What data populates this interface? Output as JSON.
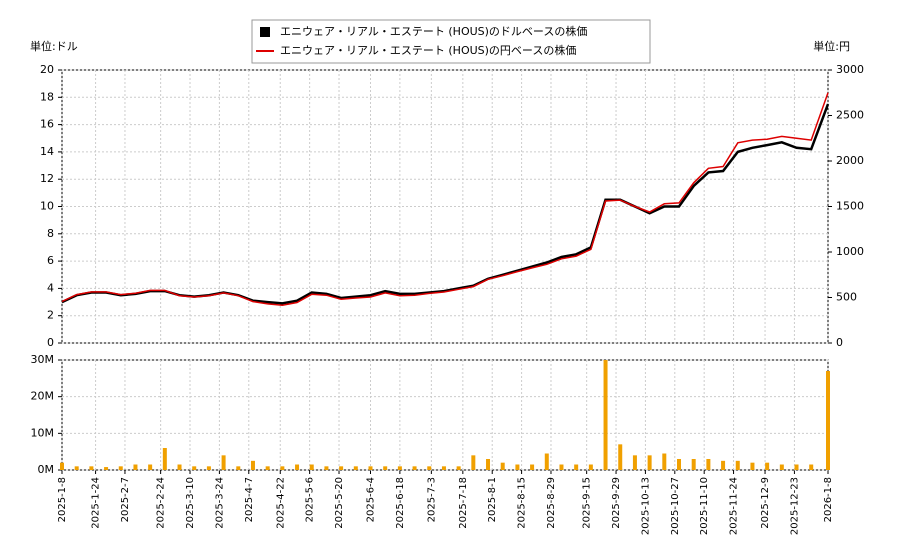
{
  "chart_data": [
    {
      "type": "line",
      "legend": "upper center",
      "ylabel": "単位:ドル",
      "y2label": "単位:円",
      "x": [
        "2025-1-8",
        "2025-1-15",
        "2025-1-22",
        "2025-1-29",
        "2025-2-5",
        "2025-2-12",
        "2025-2-19",
        "2025-2-26",
        "2025-3-5",
        "2025-3-12",
        "2025-3-19",
        "2025-3-26",
        "2025-4-2",
        "2025-4-9",
        "2025-4-16",
        "2025-4-23",
        "2025-4-30",
        "2025-5-7",
        "2025-5-14",
        "2025-5-21",
        "2025-5-28",
        "2025-6-4",
        "2025-6-11",
        "2025-6-18",
        "2025-6-25",
        "2025-7-2",
        "2025-7-9",
        "2025-7-16",
        "2025-7-23",
        "2025-7-30",
        "2025-8-6",
        "2025-8-13",
        "2025-8-20",
        "2025-8-27",
        "2025-9-3",
        "2025-9-10",
        "2025-9-17",
        "2025-9-24",
        "2025-10-1",
        "2025-10-8",
        "2025-10-15",
        "2025-10-22",
        "2025-10-29",
        "2025-11-5",
        "2025-11-12",
        "2025-11-19",
        "2025-11-26",
        "2025-12-3",
        "2025-12-10",
        "2025-12-17",
        "2025-12-24",
        "2025-12-31",
        "2026-1-8"
      ],
      "series": [
        {
          "name": "エニウェア・リアル・エステート (HOUS)のドルベースの株価",
          "color": "#000000",
          "values": [
            3.0,
            3.5,
            3.7,
            3.7,
            3.5,
            3.6,
            3.8,
            3.8,
            3.5,
            3.4,
            3.5,
            3.7,
            3.5,
            3.1,
            3.0,
            2.9,
            3.1,
            3.7,
            3.6,
            3.3,
            3.4,
            3.5,
            3.8,
            3.6,
            3.6,
            3.7,
            3.8,
            4.0,
            4.2,
            4.7,
            5.0,
            5.3,
            5.6,
            5.9,
            6.3,
            6.5,
            7.0,
            10.5,
            10.5,
            10.0,
            9.5,
            10.0,
            10.0,
            11.5,
            12.5,
            12.6,
            14.0,
            14.3,
            14.5,
            14.7,
            14.3,
            14.2,
            17.5
          ]
        },
        {
          "name": "エニウェア・リアル・エステート (HOUS)の円ベースの株価",
          "color": "#dd0000",
          "axis": "y2",
          "values": [
            456,
            532,
            562,
            562,
            532,
            547,
            578,
            578,
            520,
            505,
            520,
            550,
            520,
            455,
            430,
            415,
            445,
            535,
            525,
            480,
            495,
            505,
            550,
            520,
            525,
            545,
            560,
            590,
            620,
            700,
            740,
            785,
            825,
            865,
            925,
            955,
            1030,
            1560,
            1570,
            1500,
            1440,
            1530,
            1540,
            1760,
            1920,
            1940,
            2200,
            2230,
            2240,
            2270,
            2250,
            2230,
            2750
          ]
        }
      ],
      "ylim": [
        0,
        20
      ],
      "yticks": [
        0,
        2,
        4,
        6,
        8,
        10,
        12,
        14,
        16,
        18,
        20
      ],
      "y2lim": [
        0,
        3000
      ],
      "y2ticks": [
        0,
        500,
        1000,
        1500,
        2000,
        2500,
        3000
      ],
      "grid": true
    },
    {
      "type": "bar",
      "color": "#f0a000",
      "values": [
        2000000,
        1000000,
        1000000,
        800000,
        1000000,
        1500000,
        1500000,
        6000000,
        1500000,
        1000000,
        1000000,
        4000000,
        1000000,
        2500000,
        1000000,
        1000000,
        1500000,
        1500000,
        1000000,
        1000000,
        1000000,
        1000000,
        1000000,
        1000000,
        1000000,
        1000000,
        1000000,
        1000000,
        4000000,
        3000000,
        2000000,
        1500000,
        1500000,
        4500000,
        1500000,
        1500000,
        1500000,
        30000000,
        7000000,
        4000000,
        4000000,
        4500000,
        3000000,
        3000000,
        3000000,
        2500000,
        2500000,
        2000000,
        2000000,
        1500000,
        1500000,
        1500000,
        27000000
      ],
      "ylim": [
        0,
        30000000
      ],
      "yticks": [
        {
          "value": 0,
          "label": "0M"
        },
        {
          "value": 10000000,
          "label": "10M"
        },
        {
          "value": 20000000,
          "label": "20M"
        },
        {
          "value": 30000000,
          "label": "30M"
        }
      ],
      "xticks": [
        "2025-1-8",
        "2025-1-24",
        "2025-2-7",
        "2025-2-24",
        "2025-3-10",
        "2025-3-24",
        "2025-4-7",
        "2025-4-22",
        "2025-5-6",
        "2025-5-20",
        "2025-6-4",
        "2025-6-18",
        "2025-7-3",
        "2025-7-18",
        "2025-8-1",
        "2025-8-15",
        "2025-8-29",
        "2025-9-15",
        "2025-9-29",
        "2025-10-13",
        "2025-10-27",
        "2025-11-10",
        "2025-11-24",
        "2025-12-9",
        "2025-12-23",
        "2026-1-8"
      ],
      "grid": true
    }
  ]
}
